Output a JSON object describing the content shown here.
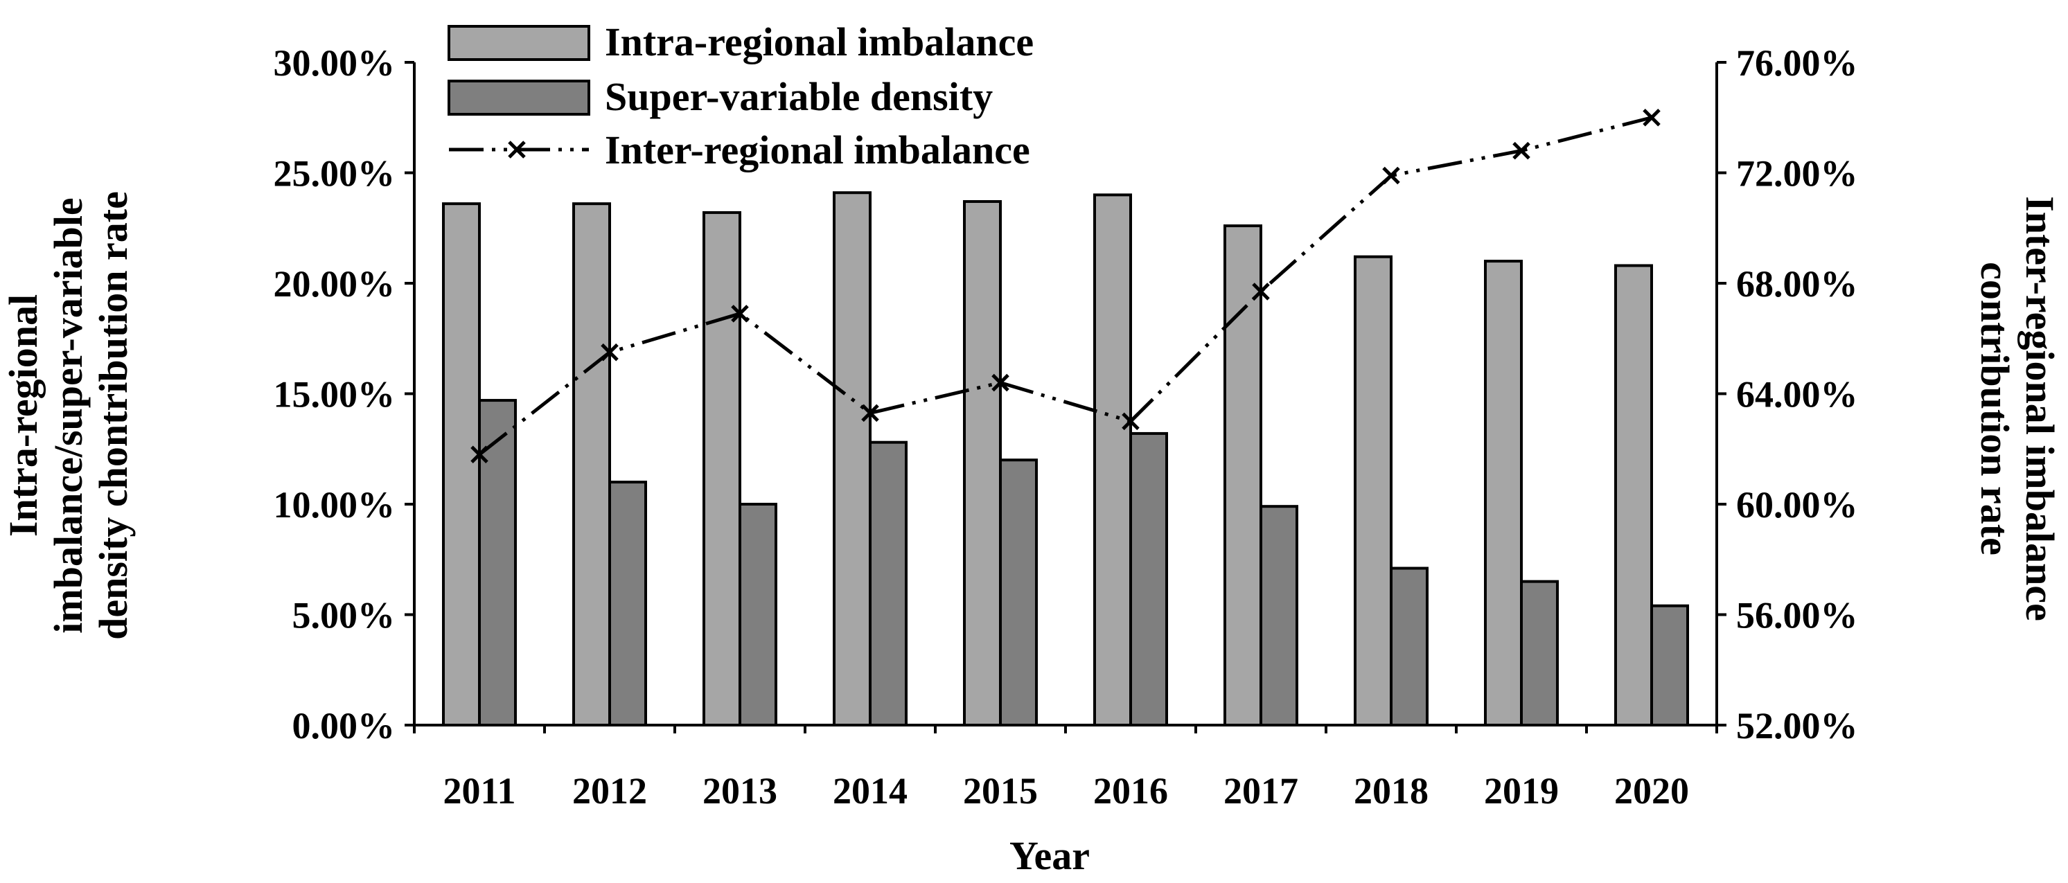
{
  "chart_data": {
    "type": "bar",
    "categories": [
      "2011",
      "2012",
      "2013",
      "2014",
      "2015",
      "2016",
      "2017",
      "2018",
      "2019",
      "2020"
    ],
    "series": [
      {
        "name": "Intra-regional imbalance",
        "axis": "left",
        "type": "bar",
        "color": "#a6a6a6",
        "values": [
          23.6,
          23.6,
          23.2,
          24.1,
          23.7,
          24.0,
          22.6,
          21.2,
          21.0,
          20.8
        ]
      },
      {
        "name": "Super-variable density",
        "axis": "left",
        "type": "bar",
        "color": "#7f7f7f",
        "values": [
          14.7,
          11.0,
          10.0,
          12.8,
          12.0,
          13.2,
          9.9,
          7.1,
          6.5,
          5.4
        ]
      },
      {
        "name": "Inter-regional imbalance",
        "axis": "right",
        "type": "line",
        "color": "#000000",
        "values": [
          61.8,
          65.5,
          66.9,
          63.3,
          64.4,
          63.0,
          67.7,
          71.9,
          72.8,
          74.0
        ]
      }
    ],
    "y_left": {
      "label_lines": [
        "Intra-regional",
        "imbalance/super-variable",
        "density chontribution rate"
      ],
      "ylim": [
        0,
        30
      ],
      "ticks": [
        "0.00%",
        "5.00%",
        "10.00%",
        "15.00%",
        "20.00%",
        "25.00%",
        "30.00%"
      ]
    },
    "y_right": {
      "label_lines": [
        "Inter-regional imbalance",
        "contribution rate"
      ],
      "ylim": [
        52,
        76
      ],
      "ticks": [
        "52.00%",
        "56.00%",
        "60.00%",
        "64.00%",
        "68.00%",
        "72.00%",
        "76.00%"
      ]
    },
    "xlabel": "Year",
    "legend_position": "top-left"
  }
}
